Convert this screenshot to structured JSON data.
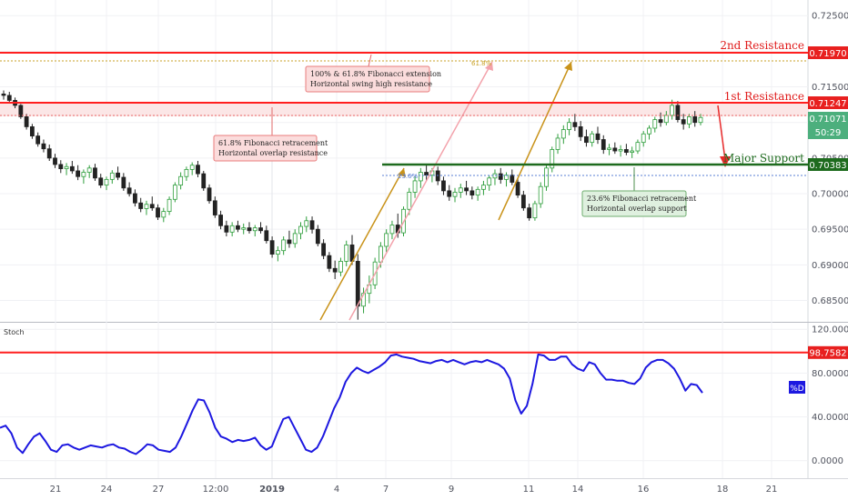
{
  "chart_data": {
    "type": "candlestick",
    "price_axis": {
      "ylim": [
        0.682,
        0.7272
      ],
      "ticks": [
        "0.72500",
        "0.72000",
        "0.71500",
        "0.71000",
        "0.70500",
        "0.70000",
        "0.69500",
        "0.69000",
        "0.68500"
      ]
    },
    "x_axis": {
      "ticks": [
        "21",
        "24",
        "27",
        "12:00",
        "2019",
        "4",
        "7",
        "9",
        "11",
        "14",
        "16",
        "18",
        "21"
      ]
    },
    "levels": [
      {
        "label": "2nd Resistance",
        "value": 0.7197,
        "value_text": "0.71970",
        "color": "#ff1f1f"
      },
      {
        "label": "1st Resistance",
        "value": 0.71247,
        "value_text": "0.71247",
        "color": "#ff1f1f"
      },
      {
        "label": "Major Support",
        "value": 0.70383,
        "value_text": "0.70383",
        "color": "#1e6b1e"
      }
    ],
    "current_price": {
      "value": 0.71071,
      "value_text": "0.71071",
      "countdown": "50:29",
      "color": "#4caf7d"
    },
    "annotations": [
      {
        "line1": "100% & 61.8% Fibonacci extension",
        "line2": "Horizontal swing high resistance"
      },
      {
        "line1": "61.8% Fibonacci retracement",
        "line2": "Horizontal overlap resistance"
      },
      {
        "line1": "23.6% Fibonacci retracement",
        "line2": "Horizontal overlap support"
      }
    ],
    "fib_labels": [
      "61.8%",
      "23.6%"
    ],
    "stoch": {
      "title": "Stoch",
      "legend": "%D",
      "ylim": [
        -16,
        126
      ],
      "ticks": [
        "120.0000",
        "80.0000",
        "40.0000",
        "0.0000"
      ],
      "level": {
        "value": 98.7582,
        "value_text": "98.7582"
      },
      "d": [
        30,
        32,
        25,
        12,
        7,
        15,
        22,
        25,
        18,
        10,
        8,
        14,
        15,
        12,
        10,
        12,
        14,
        13,
        12,
        14,
        15,
        12,
        11,
        8,
        6,
        10,
        15,
        14,
        10,
        9,
        8,
        12,
        22,
        34,
        46,
        56,
        55,
        44,
        30,
        22,
        20,
        17,
        19,
        18,
        19,
        21,
        14,
        10,
        13,
        26,
        38,
        40,
        30,
        20,
        10,
        8,
        12,
        22,
        35,
        48,
        58,
        72,
        80,
        85,
        82,
        80,
        83,
        86,
        90,
        96,
        97,
        95,
        94,
        93,
        91,
        90,
        89,
        91,
        92,
        90,
        92,
        90,
        88,
        90,
        91,
        90,
        92,
        90,
        88,
        84,
        75,
        55,
        43,
        50,
        70,
        97,
        96,
        92,
        92,
        95,
        95,
        88,
        84,
        82,
        90,
        88,
        80,
        74,
        74,
        73,
        73,
        71,
        70,
        75,
        85,
        90,
        92,
        92,
        89,
        84,
        75,
        64,
        70,
        69,
        62
      ]
    },
    "candles": [
      [
        0.714,
        0.7145,
        0.7132,
        0.7138
      ],
      [
        0.7138,
        0.7143,
        0.7129,
        0.7131
      ],
      [
        0.7131,
        0.7135,
        0.712,
        0.7124
      ],
      [
        0.7124,
        0.7126,
        0.7105,
        0.7108
      ],
      [
        0.7108,
        0.7112,
        0.709,
        0.7094
      ],
      [
        0.7094,
        0.7098,
        0.7077,
        0.7081
      ],
      [
        0.7081,
        0.7086,
        0.7066,
        0.707
      ],
      [
        0.707,
        0.7076,
        0.7058,
        0.7063
      ],
      [
        0.7063,
        0.7069,
        0.7046,
        0.705
      ],
      [
        0.705,
        0.7056,
        0.7036,
        0.7041
      ],
      [
        0.7041,
        0.7047,
        0.7029,
        0.7035
      ],
      [
        0.7035,
        0.7043,
        0.7026,
        0.7038
      ],
      [
        0.7038,
        0.7046,
        0.7028,
        0.7032
      ],
      [
        0.7032,
        0.704,
        0.7019,
        0.7024
      ],
      [
        0.7024,
        0.7034,
        0.7014,
        0.703
      ],
      [
        0.703,
        0.704,
        0.7022,
        0.7036
      ],
      [
        0.7036,
        0.7042,
        0.7018,
        0.7022
      ],
      [
        0.7022,
        0.7028,
        0.7008,
        0.7012
      ],
      [
        0.7012,
        0.7024,
        0.7005,
        0.702
      ],
      [
        0.702,
        0.7033,
        0.7014,
        0.7029
      ],
      [
        0.7029,
        0.7038,
        0.7019,
        0.7023
      ],
      [
        0.7023,
        0.7029,
        0.7004,
        0.7008
      ],
      [
        0.7008,
        0.7016,
        0.6996,
        0.7
      ],
      [
        0.7,
        0.7006,
        0.6982,
        0.6987
      ],
      [
        0.6987,
        0.6994,
        0.6974,
        0.6979
      ],
      [
        0.6979,
        0.699,
        0.697,
        0.6985
      ],
      [
        0.6985,
        0.6996,
        0.6976,
        0.698
      ],
      [
        0.698,
        0.6985,
        0.6963,
        0.6967
      ],
      [
        0.6967,
        0.698,
        0.696,
        0.6975
      ],
      [
        0.6975,
        0.6996,
        0.697,
        0.6992
      ],
      [
        0.6992,
        0.7016,
        0.6988,
        0.7012
      ],
      [
        0.7012,
        0.703,
        0.7006,
        0.7024
      ],
      [
        0.7024,
        0.7038,
        0.7018,
        0.7034
      ],
      [
        0.7034,
        0.7044,
        0.7026,
        0.704
      ],
      [
        0.704,
        0.7046,
        0.7023,
        0.7028
      ],
      [
        0.7028,
        0.7032,
        0.7004,
        0.7008
      ],
      [
        0.7008,
        0.7013,
        0.6986,
        0.699
      ],
      [
        0.699,
        0.6996,
        0.6966,
        0.697
      ],
      [
        0.697,
        0.6976,
        0.695,
        0.6955
      ],
      [
        0.6955,
        0.6962,
        0.694,
        0.6946
      ],
      [
        0.6946,
        0.696,
        0.694,
        0.6955
      ],
      [
        0.6955,
        0.6962,
        0.6946,
        0.695
      ],
      [
        0.695,
        0.6958,
        0.6943,
        0.6952
      ],
      [
        0.6952,
        0.696,
        0.6944,
        0.6948
      ],
      [
        0.6948,
        0.6956,
        0.694,
        0.6952
      ],
      [
        0.6952,
        0.696,
        0.6944,
        0.6948
      ],
      [
        0.6948,
        0.6955,
        0.693,
        0.6934
      ],
      [
        0.6934,
        0.694,
        0.691,
        0.6915
      ],
      [
        0.6915,
        0.6926,
        0.6905,
        0.692
      ],
      [
        0.692,
        0.694,
        0.6914,
        0.6935
      ],
      [
        0.6935,
        0.6948,
        0.6924,
        0.693
      ],
      [
        0.693,
        0.695,
        0.6924,
        0.6944
      ],
      [
        0.6944,
        0.696,
        0.6936,
        0.6954
      ],
      [
        0.6954,
        0.6968,
        0.6946,
        0.6962
      ],
      [
        0.6962,
        0.6968,
        0.6944,
        0.695
      ],
      [
        0.695,
        0.6956,
        0.6926,
        0.693
      ],
      [
        0.693,
        0.6936,
        0.6908,
        0.6913
      ],
      [
        0.6913,
        0.6918,
        0.689,
        0.6895
      ],
      [
        0.6895,
        0.6906,
        0.688,
        0.689
      ],
      [
        0.689,
        0.691,
        0.6884,
        0.6905
      ],
      [
        0.6905,
        0.6934,
        0.6898,
        0.6928
      ],
      [
        0.6928,
        0.6942,
        0.69,
        0.6905
      ],
      [
        0.6905,
        0.6915,
        0.6823,
        0.6842
      ],
      [
        0.6842,
        0.6868,
        0.6832,
        0.686
      ],
      [
        0.686,
        0.6885,
        0.6846,
        0.6872
      ],
      [
        0.6872,
        0.691,
        0.6866,
        0.6904
      ],
      [
        0.6904,
        0.6932,
        0.6896,
        0.6926
      ],
      [
        0.6926,
        0.695,
        0.6918,
        0.6944
      ],
      [
        0.6944,
        0.6962,
        0.6936,
        0.6956
      ],
      [
        0.6956,
        0.6972,
        0.6938,
        0.6945
      ],
      [
        0.6945,
        0.6982,
        0.694,
        0.6978
      ],
      [
        0.6978,
        0.7008,
        0.697,
        0.7002
      ],
      [
        0.7002,
        0.7024,
        0.6994,
        0.7018
      ],
      [
        0.7018,
        0.7036,
        0.7008,
        0.703
      ],
      [
        0.703,
        0.704,
        0.7018,
        0.7026
      ],
      [
        0.7026,
        0.7036,
        0.7016,
        0.7032
      ],
      [
        0.7032,
        0.7038,
        0.7012,
        0.7018
      ],
      [
        0.7018,
        0.7024,
        0.6998,
        0.7004
      ],
      [
        0.7004,
        0.7012,
        0.699,
        0.6996
      ],
      [
        0.6996,
        0.7008,
        0.6988,
        0.7002
      ],
      [
        0.7002,
        0.7014,
        0.6994,
        0.7008
      ],
      [
        0.7008,
        0.7018,
        0.6998,
        0.7004
      ],
      [
        0.7004,
        0.701,
        0.6992,
        0.6998
      ],
      [
        0.6998,
        0.701,
        0.699,
        0.7006
      ],
      [
        0.7006,
        0.7018,
        0.6998,
        0.7012
      ],
      [
        0.7012,
        0.7026,
        0.7004,
        0.7022
      ],
      [
        0.7022,
        0.7034,
        0.7012,
        0.7028
      ],
      [
        0.7028,
        0.7036,
        0.7014,
        0.702
      ],
      [
        0.702,
        0.703,
        0.701,
        0.7026
      ],
      [
        0.7026,
        0.7034,
        0.7012,
        0.7016
      ],
      [
        0.7016,
        0.7022,
        0.6994,
        0.6998
      ],
      [
        0.6998,
        0.7004,
        0.6976,
        0.698
      ],
      [
        0.698,
        0.6986,
        0.6962,
        0.6966
      ],
      [
        0.6966,
        0.699,
        0.6962,
        0.6986
      ],
      [
        0.6986,
        0.7016,
        0.698,
        0.701
      ],
      [
        0.701,
        0.704,
        0.7004,
        0.7036
      ],
      [
        0.7036,
        0.7066,
        0.703,
        0.7062
      ],
      [
        0.7062,
        0.7084,
        0.7056,
        0.7078
      ],
      [
        0.7078,
        0.7096,
        0.707,
        0.709
      ],
      [
        0.709,
        0.7106,
        0.7082,
        0.71
      ],
      [
        0.71,
        0.7112,
        0.7088,
        0.7094
      ],
      [
        0.7094,
        0.7102,
        0.7074,
        0.708
      ],
      [
        0.708,
        0.709,
        0.7066,
        0.7072
      ],
      [
        0.7072,
        0.7088,
        0.7066,
        0.7084
      ],
      [
        0.7084,
        0.7094,
        0.707,
        0.7076
      ],
      [
        0.7076,
        0.7082,
        0.7056,
        0.7062
      ],
      [
        0.7062,
        0.707,
        0.7054,
        0.7064
      ],
      [
        0.7064,
        0.7072,
        0.7056,
        0.706
      ],
      [
        0.706,
        0.7068,
        0.7052,
        0.7062
      ],
      [
        0.7062,
        0.707,
        0.7054,
        0.7058
      ],
      [
        0.7058,
        0.7066,
        0.705,
        0.706
      ],
      [
        0.706,
        0.7076,
        0.7056,
        0.7072
      ],
      [
        0.7072,
        0.7088,
        0.7066,
        0.7084
      ],
      [
        0.7084,
        0.7096,
        0.7076,
        0.7092
      ],
      [
        0.7092,
        0.7108,
        0.7086,
        0.7104
      ],
      [
        0.7104,
        0.7114,
        0.7094,
        0.71
      ],
      [
        0.71,
        0.7116,
        0.7096,
        0.711
      ],
      [
        0.711,
        0.7132,
        0.7104,
        0.7124
      ],
      [
        0.7124,
        0.713,
        0.71,
        0.7104
      ],
      [
        0.7104,
        0.7112,
        0.709,
        0.7098
      ],
      [
        0.7098,
        0.7112,
        0.7092,
        0.7108
      ],
      [
        0.7108,
        0.7116,
        0.7094,
        0.71
      ],
      [
        0.71,
        0.7112,
        0.7096,
        0.7107
      ]
    ]
  }
}
